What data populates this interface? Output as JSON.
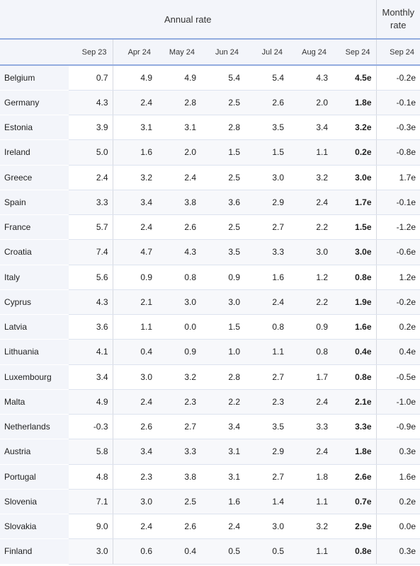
{
  "header": {
    "annual_label": "Annual rate",
    "monthly_label_1": "Monthly",
    "monthly_label_2": "rate"
  },
  "columns": [
    "Sep 23",
    "Apr 24",
    "May 24",
    "Jun 24",
    "Jul 24",
    "Aug 24",
    "Sep 24",
    "Sep 24"
  ],
  "rows": [
    {
      "country": "Belgium",
      "values": [
        "0.7",
        "4.9",
        "4.9",
        "5.4",
        "5.4",
        "4.3",
        "4.5e",
        "-0.2e"
      ]
    },
    {
      "country": "Germany",
      "values": [
        "4.3",
        "2.4",
        "2.8",
        "2.5",
        "2.6",
        "2.0",
        "1.8e",
        "-0.1e"
      ]
    },
    {
      "country": "Estonia",
      "values": [
        "3.9",
        "3.1",
        "3.1",
        "2.8",
        "3.5",
        "3.4",
        "3.2e",
        "-0.3e"
      ]
    },
    {
      "country": "Ireland",
      "values": [
        "5.0",
        "1.6",
        "2.0",
        "1.5",
        "1.5",
        "1.1",
        "0.2e",
        "-0.8e"
      ]
    },
    {
      "country": "Greece",
      "values": [
        "2.4",
        "3.2",
        "2.4",
        "2.5",
        "3.0",
        "3.2",
        "3.0e",
        "1.7e"
      ]
    },
    {
      "country": "Spain",
      "values": [
        "3.3",
        "3.4",
        "3.8",
        "3.6",
        "2.9",
        "2.4",
        "1.7e",
        "-0.1e"
      ]
    },
    {
      "country": "France",
      "values": [
        "5.7",
        "2.4",
        "2.6",
        "2.5",
        "2.7",
        "2.2",
        "1.5e",
        "-1.2e"
      ]
    },
    {
      "country": "Croatia",
      "values": [
        "7.4",
        "4.7",
        "4.3",
        "3.5",
        "3.3",
        "3.0",
        "3.0e",
        "-0.6e"
      ]
    },
    {
      "country": "Italy",
      "values": [
        "5.6",
        "0.9",
        "0.8",
        "0.9",
        "1.6",
        "1.2",
        "0.8e",
        "1.2e"
      ]
    },
    {
      "country": "Cyprus",
      "values": [
        "4.3",
        "2.1",
        "3.0",
        "3.0",
        "2.4",
        "2.2",
        "1.9e",
        "-0.2e"
      ]
    },
    {
      "country": "Latvia",
      "values": [
        "3.6",
        "1.1",
        "0.0",
        "1.5",
        "0.8",
        "0.9",
        "1.6e",
        "0.2e"
      ]
    },
    {
      "country": "Lithuania",
      "values": [
        "4.1",
        "0.4",
        "0.9",
        "1.0",
        "1.1",
        "0.8",
        "0.4e",
        "0.4e"
      ]
    },
    {
      "country": "Luxembourg",
      "values": [
        "3.4",
        "3.0",
        "3.2",
        "2.8",
        "2.7",
        "1.7",
        "0.8e",
        "-0.5e"
      ]
    },
    {
      "country": "Malta",
      "values": [
        "4.9",
        "2.4",
        "2.3",
        "2.2",
        "2.3",
        "2.4",
        "2.1e",
        "-1.0e"
      ]
    },
    {
      "country": "Netherlands",
      "values": [
        "-0.3",
        "2.6",
        "2.7",
        "3.4",
        "3.5",
        "3.3",
        "3.3e",
        "-0.9e"
      ]
    },
    {
      "country": "Austria",
      "values": [
        "5.8",
        "3.4",
        "3.3",
        "3.1",
        "2.9",
        "2.4",
        "1.8e",
        "0.3e"
      ]
    },
    {
      "country": "Portugal",
      "values": [
        "4.8",
        "2.3",
        "3.8",
        "3.1",
        "2.7",
        "1.8",
        "2.6e",
        "1.6e"
      ]
    },
    {
      "country": "Slovenia",
      "values": [
        "7.1",
        "3.0",
        "2.5",
        "1.6",
        "1.4",
        "1.1",
        "0.7e",
        "0.2e"
      ]
    },
    {
      "country": "Slovakia",
      "values": [
        "9.0",
        "2.4",
        "2.6",
        "2.4",
        "3.0",
        "3.2",
        "2.9e",
        "0.0e"
      ]
    },
    {
      "country": "Finland",
      "values": [
        "3.0",
        "0.6",
        "0.4",
        "0.5",
        "0.5",
        "1.1",
        "0.8e",
        "0.3e"
      ]
    }
  ]
}
